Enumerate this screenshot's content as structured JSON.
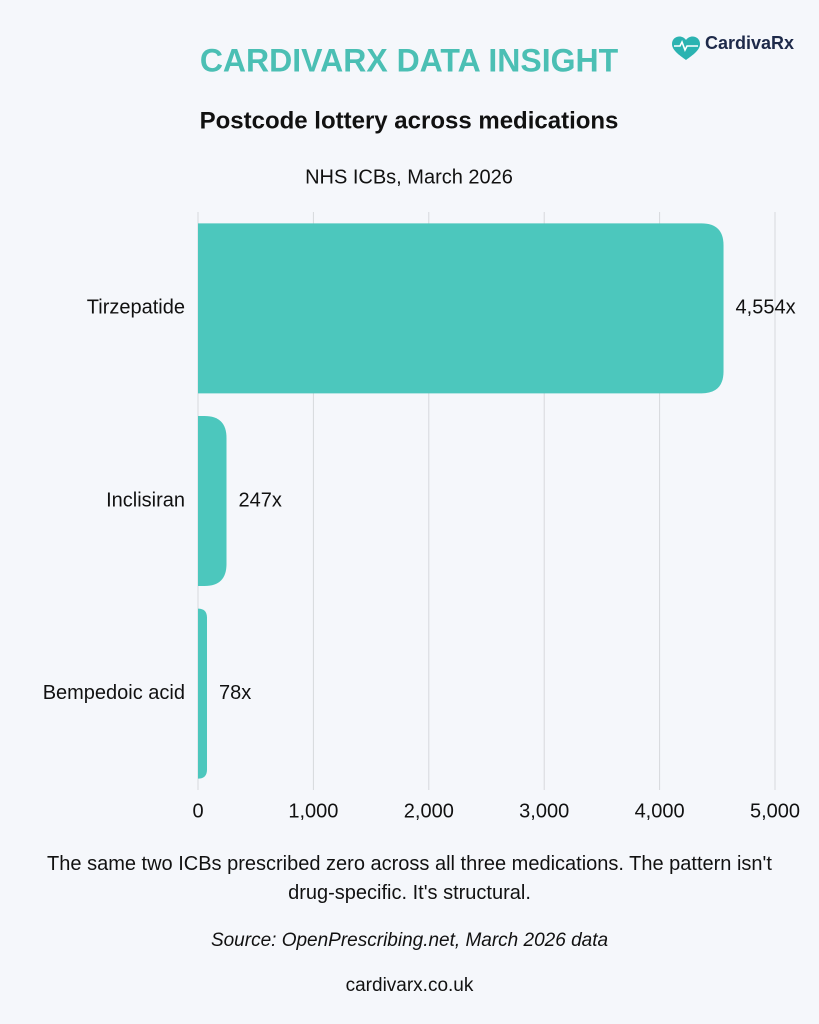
{
  "header": {
    "eyebrow": "CARDIVARX DATA INSIGHT",
    "logo": "CardivaRx"
  },
  "chart_data": {
    "type": "bar",
    "orientation": "horizontal",
    "title": "Postcode lottery across medications",
    "subtitle": "NHS ICBs, March 2026",
    "categories": [
      "Tirzepatide",
      "Inclisiran",
      "Bempedoic acid"
    ],
    "values": [
      4554,
      247,
      78
    ],
    "value_labels": [
      "4,554x",
      "247x",
      "78x"
    ],
    "color": "#4cc7bd",
    "xlim": [
      0,
      5000
    ],
    "xticks": [
      0,
      {
        "value": 1000,
        "label": "1,000"
      },
      {
        "value": 2000,
        "label": "2,000"
      },
      {
        "value": 3000,
        "label": "3,000"
      },
      {
        "value": 4000,
        "label": "4,000"
      },
      {
        "value": 5000,
        "label": "5,000"
      }
    ],
    "grid": true
  },
  "footer": {
    "note": "The same two ICBs prescribed zero across all three medications. The pattern isn't drug-specific. It's structural.",
    "source": "Source: OpenPrescribing.net, March 2026 data",
    "website": "cardivarx.co.uk"
  }
}
